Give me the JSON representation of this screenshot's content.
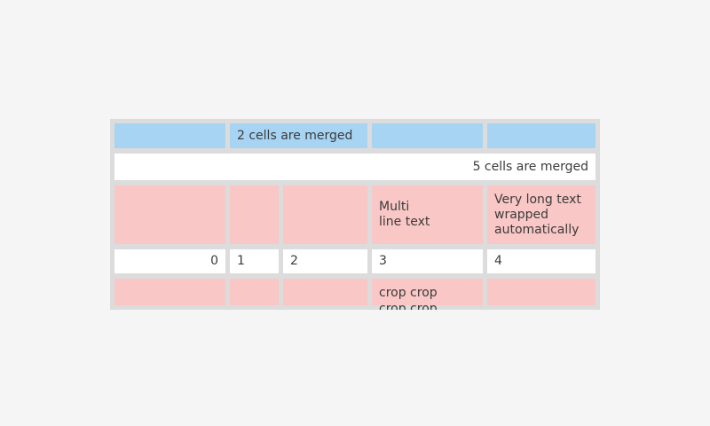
{
  "page": {
    "background_color": "#f5f5f5"
  },
  "table": {
    "description": "table widget with merged, wrapped and cropped cells",
    "background_color": "#dcdcdc",
    "cell_colors": {
      "blue": "#a7d4f3",
      "pink": "#f9c7c5",
      "white": "#ffffff"
    },
    "text_color": "#3b3b3b",
    "rows": [
      {
        "cells": [
          {
            "text": ""
          },
          {
            "text": "2 cells are merged",
            "merged": 2
          },
          {
            "text": ""
          },
          {
            "text": ""
          }
        ]
      },
      {
        "cells": [
          {
            "text": "5 cells are merged",
            "merged": 5,
            "align": "right"
          }
        ]
      },
      {
        "cells": [
          {
            "text": ""
          },
          {
            "text": ""
          },
          {
            "text": ""
          },
          {
            "text": "Multi\nline text"
          },
          {
            "text": "Very long text wrapped automatically"
          }
        ]
      },
      {
        "cells": [
          {
            "text": "0",
            "align": "right"
          },
          {
            "text": "1"
          },
          {
            "text": "2"
          },
          {
            "text": "3"
          },
          {
            "text": "4"
          }
        ]
      },
      {
        "cells": [
          {
            "text": ""
          },
          {
            "text": ""
          },
          {
            "text": ""
          },
          {
            "text": "crop crop crop crop",
            "cropped": true
          },
          {
            "text": ""
          }
        ]
      }
    ]
  }
}
